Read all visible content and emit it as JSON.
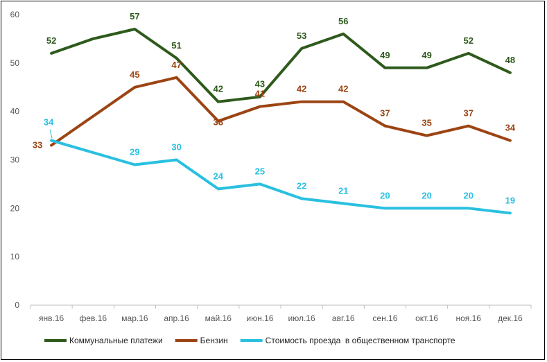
{
  "chart_data": {
    "type": "line",
    "title": "",
    "xlabel": "",
    "ylabel": "",
    "ylim": [
      0,
      60
    ],
    "yticks": [
      0,
      10,
      20,
      30,
      40,
      50,
      60
    ],
    "grid": false,
    "legend_position": "bottom",
    "categories": [
      "янв.16",
      "фев.16",
      "мар.16",
      "апр.16",
      "май.16",
      "июн.16",
      "июл.16",
      "авг.16",
      "сен.16",
      "окт.16",
      "ноя.16",
      "дек.16"
    ],
    "series": [
      {
        "name": "Коммунальные платежи",
        "color": "#2e5a1c",
        "values": [
          52,
          55,
          57,
          51,
          42,
          43,
          53,
          56,
          49,
          49,
          52,
          48
        ],
        "labels": [
          "52",
          null,
          "57",
          "51",
          "42",
          "43",
          "53",
          "56",
          "49",
          "49",
          "52",
          "48"
        ]
      },
      {
        "name": "Бензин",
        "color": "#9c4413",
        "values": [
          33,
          39,
          45,
          47,
          38,
          41,
          42,
          42,
          37,
          35,
          37,
          34
        ],
        "labels": [
          "33",
          null,
          "45",
          "47",
          "38",
          "41",
          "42",
          "42",
          "37",
          "35",
          "37",
          "34"
        ]
      },
      {
        "name": "Стоимость проезда  в общественном транспорте",
        "color": "#29c0e0",
        "values": [
          34,
          31.5,
          29,
          30,
          24,
          25,
          22,
          21,
          20,
          20,
          20,
          19
        ],
        "labels": [
          "34",
          null,
          "29",
          "30",
          "24",
          "25",
          "22",
          "21",
          "20",
          "20",
          "20",
          "19"
        ]
      }
    ]
  }
}
